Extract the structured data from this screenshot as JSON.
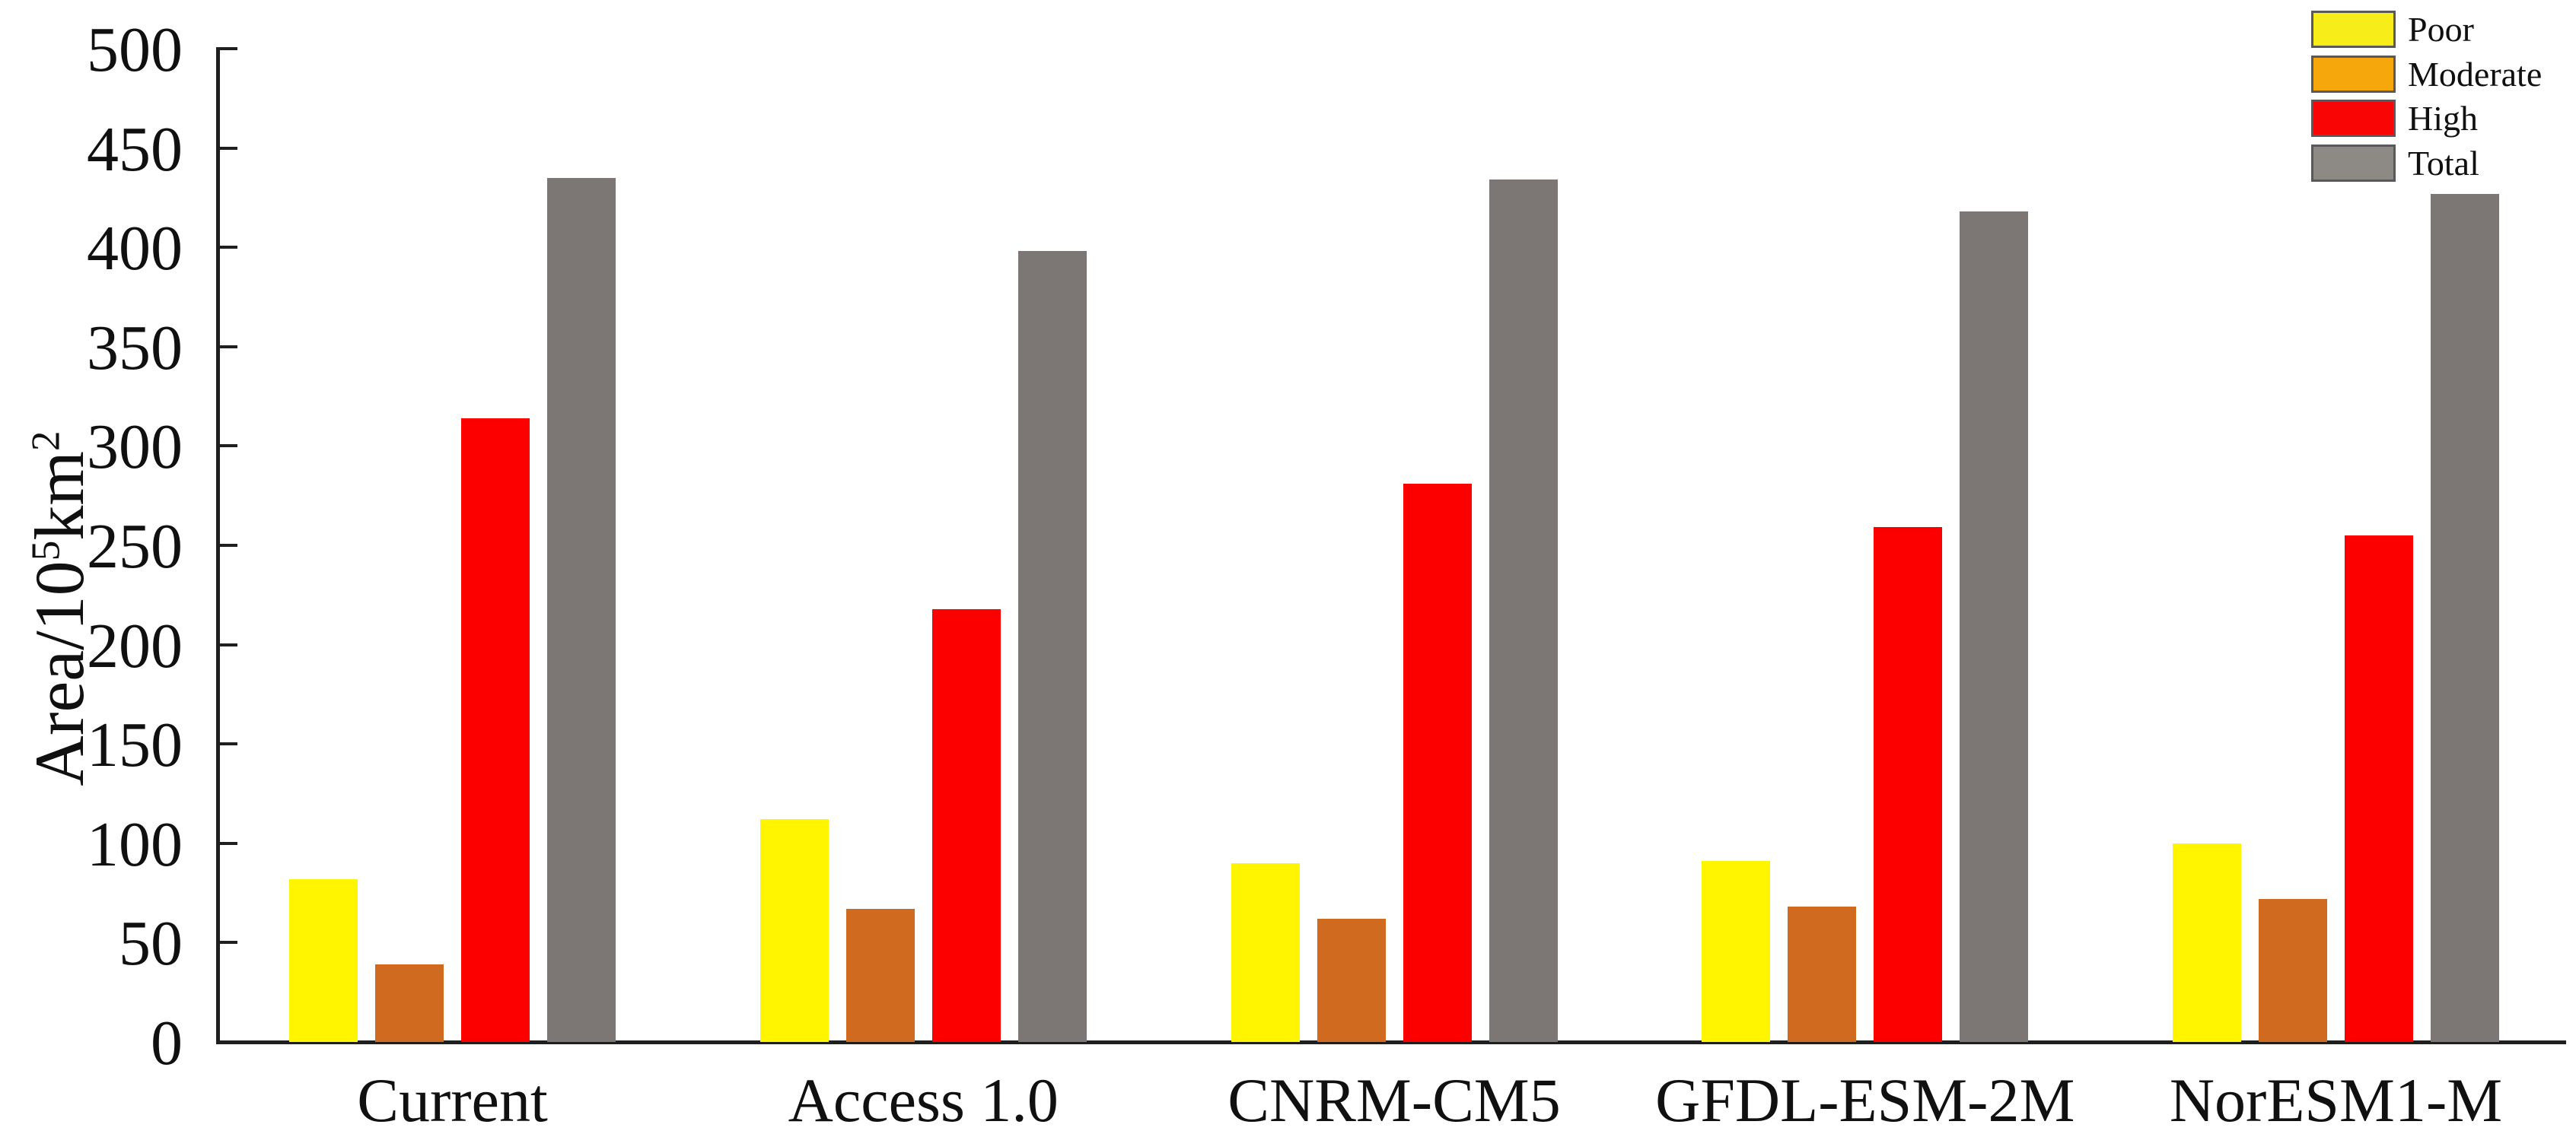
{
  "chart_data": {
    "type": "bar",
    "title": "",
    "xlabel": "",
    "ylabel": "Area/10⁵km²",
    "ylabel_parts": [
      {
        "text": "Area/10",
        "sup": false
      },
      {
        "text": "5",
        "sup": true
      },
      {
        "text": "km",
        "sup": false
      },
      {
        "text": "2",
        "sup": true
      }
    ],
    "grid": false,
    "categories": [
      "Current",
      "Access 1.0",
      "CNRM-CM5",
      "GFDL-ESM-2M",
      "NorESM1-M"
    ],
    "series": [
      {
        "name": "Poor",
        "color": "#FFF500",
        "values": [
          82,
          112,
          90,
          91,
          100
        ]
      },
      {
        "name": "Moderate",
        "color": "#D06A1F",
        "values": [
          39,
          67,
          62,
          68,
          72
        ]
      },
      {
        "name": "High",
        "color": "#FC0000",
        "values": [
          314,
          218,
          281,
          259,
          255
        ]
      },
      {
        "name": "Total",
        "color": "#7C7774",
        "values": [
          435,
          398,
          434,
          418,
          427
        ]
      }
    ],
    "y_axis": {
      "min": 0,
      "max": 500,
      "step": 50,
      "tick_labels": [
        "500",
        "450",
        "400",
        "350",
        "300",
        "250",
        "200",
        "150",
        "100",
        "50",
        "0"
      ]
    },
    "legend": {
      "position": "top-right",
      "items": [
        {
          "label": "Poor",
          "swatch_color": "#F7EE19"
        },
        {
          "label": "Moderate",
          "swatch_color": "#F6A70B"
        },
        {
          "label": "High",
          "swatch_color": "#F90505"
        },
        {
          "label": "Total",
          "swatch_color": "#8D8984"
        }
      ]
    }
  }
}
